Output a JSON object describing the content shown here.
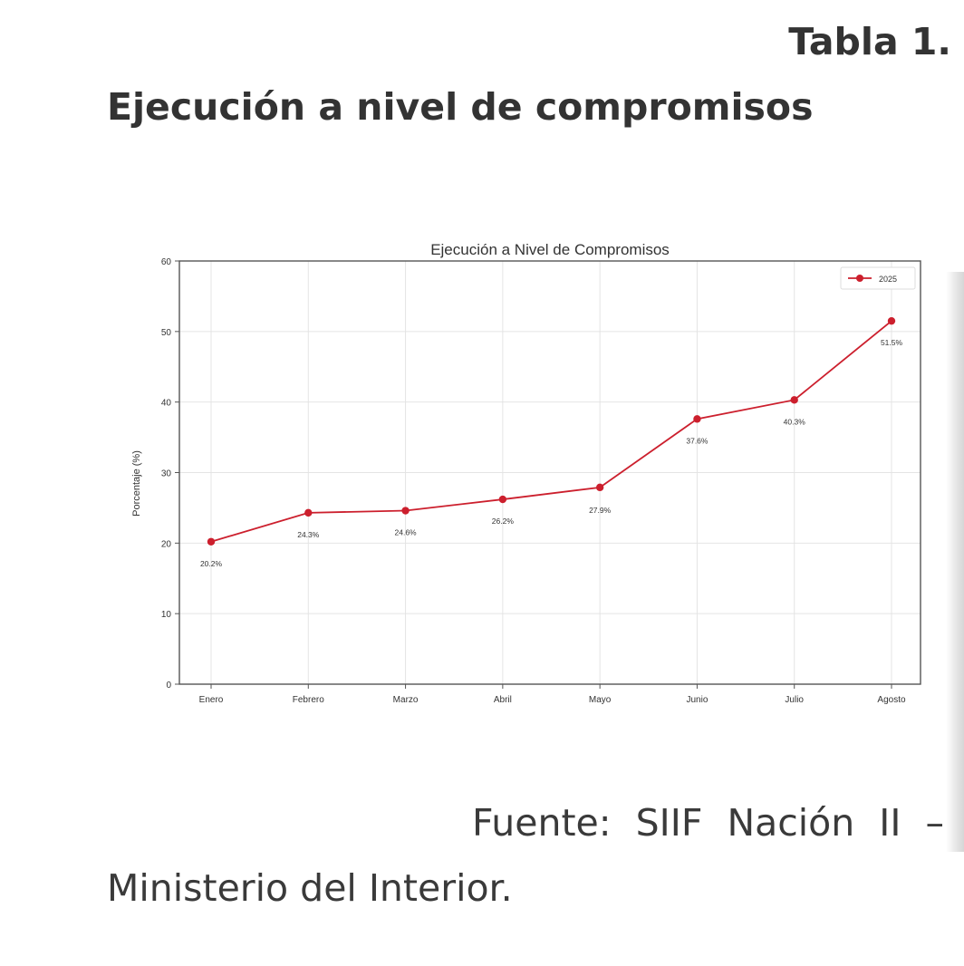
{
  "document": {
    "table_label": "Tabla 1.",
    "title": "Ejecución a nivel de compromisos",
    "source_line1": "Fuente: SIIF Nación II –",
    "source_line2": "Ministerio del Interior."
  },
  "chart_data": {
    "type": "line",
    "title": "Ejecución a Nivel de Compromisos",
    "xlabel": "",
    "ylabel": "Porcentaje (%)",
    "categories": [
      "Enero",
      "Febrero",
      "Marzo",
      "Abril",
      "Mayo",
      "Junio",
      "Julio",
      "Agosto"
    ],
    "series": [
      {
        "name": "2025",
        "values": [
          20.2,
          24.3,
          24.6,
          26.2,
          27.9,
          37.6,
          40.3,
          51.5
        ],
        "labels": [
          "20.2%",
          "24.3%",
          "24.6%",
          "26.2%",
          "27.9%",
          "37.6%",
          "40.3%",
          "51.5%"
        ],
        "color": "#cc1f2d"
      }
    ],
    "ylim": [
      0,
      60
    ],
    "yticks": [
      0,
      10,
      20,
      30,
      40,
      50,
      60
    ],
    "grid": true,
    "legend_position": "top-right"
  }
}
